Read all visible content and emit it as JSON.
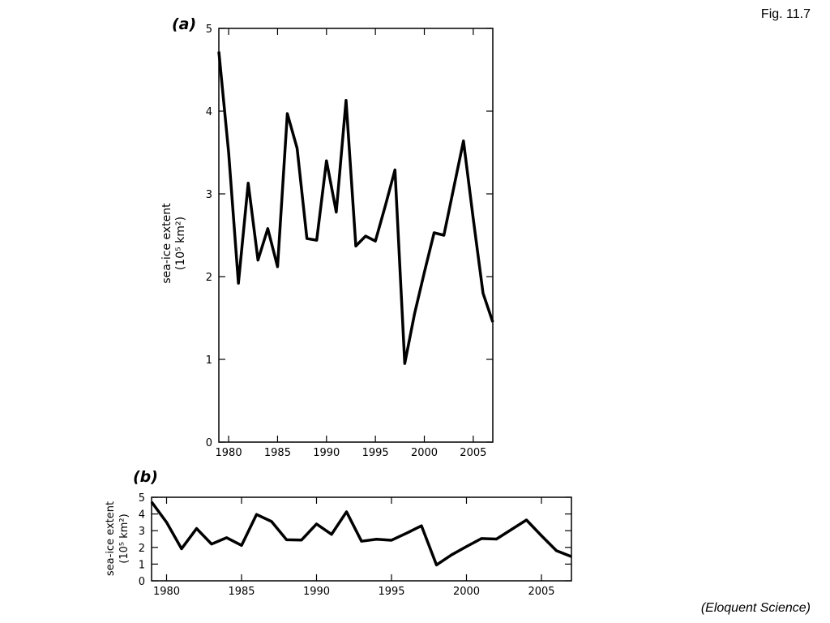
{
  "figure_label": "Fig. 11.7",
  "source": "(Eloquent Science)",
  "chart_data": [
    {
      "type": "line",
      "title": "(a)",
      "ylabel": [
        "sea-ice extent",
        "(10⁵ km²)"
      ],
      "x": [
        1979,
        1980,
        1981,
        1982,
        1983,
        1984,
        1985,
        1986,
        1987,
        1988,
        1989,
        1990,
        1991,
        1992,
        1993,
        1994,
        1995,
        1996,
        1997,
        1998,
        1999,
        2000,
        2001,
        2002,
        2003,
        2004,
        2005,
        2006,
        2007
      ],
      "series": [
        {
          "color": "#000000",
          "values": [
            4.72,
            3.5,
            1.92,
            3.13,
            2.2,
            2.58,
            2.12,
            3.97,
            3.55,
            2.46,
            2.44,
            3.4,
            2.78,
            4.13,
            2.37,
            2.49,
            2.43,
            2.85,
            3.29,
            0.95,
            1.55,
            2.05,
            2.53,
            2.5,
            3.07,
            3.64,
            2.7,
            1.8,
            1.45
          ]
        }
      ],
      "xlim": [
        1979,
        2007
      ],
      "xticks": [
        1980,
        1985,
        1990,
        1995,
        2000,
        2005
      ],
      "ylim": [
        0,
        5
      ],
      "yticks": [
        0,
        1,
        2,
        3,
        4,
        5
      ]
    },
    {
      "type": "line",
      "title": "(b)",
      "ylabel": [
        "sea-ice extent",
        "(10⁵ km²)"
      ],
      "x": [
        1979,
        1980,
        1981,
        1982,
        1983,
        1984,
        1985,
        1986,
        1987,
        1988,
        1989,
        1990,
        1991,
        1992,
        1993,
        1994,
        1995,
        1996,
        1997,
        1998,
        1999,
        2000,
        2001,
        2002,
        2003,
        2004,
        2005,
        2006,
        2007
      ],
      "series": [
        {
          "color": "#000000",
          "values": [
            4.72,
            3.5,
            1.92,
            3.13,
            2.2,
            2.58,
            2.12,
            3.97,
            3.55,
            2.46,
            2.44,
            3.4,
            2.78,
            4.13,
            2.37,
            2.49,
            2.43,
            2.85,
            3.29,
            0.95,
            1.55,
            2.05,
            2.53,
            2.5,
            3.07,
            3.64,
            2.7,
            1.8,
            1.45
          ]
        }
      ],
      "xlim": [
        1979,
        2007
      ],
      "xticks": [
        1980,
        1985,
        1990,
        1995,
        2000,
        2005
      ],
      "ylim": [
        0,
        5
      ],
      "yticks": [
        0,
        1,
        2,
        3,
        4,
        5
      ]
    }
  ]
}
